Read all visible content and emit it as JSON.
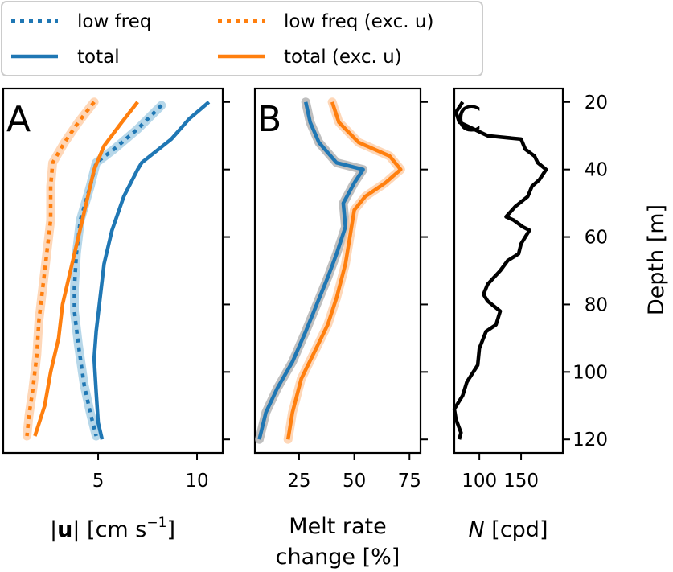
{
  "colors": {
    "blue": "#1f77b4",
    "orange": "#ff7f0e",
    "black": "#000000",
    "band_blue": "#9ecae1",
    "band_orange": "#fdc9a0",
    "band_gray": "#aaaaaa"
  },
  "legend": {
    "placement": "top",
    "entries": [
      {
        "label": "low freq",
        "color": "#1f77b4",
        "style": "dotted"
      },
      {
        "label": "total",
        "color": "#1f77b4",
        "style": "solid"
      },
      {
        "label": "low freq (exc. u)",
        "color": "#ff7f0e",
        "style": "dotted"
      },
      {
        "label": "total (exc. u)",
        "color": "#ff7f0e",
        "style": "solid"
      }
    ]
  },
  "depth_axis": {
    "label": "Depth [m]",
    "ticks": [
      20,
      40,
      60,
      80,
      100,
      120
    ],
    "range": [
      16,
      124
    ],
    "inverted": true
  },
  "chart_data": [
    {
      "panel": "A",
      "type": "line",
      "xlabel": "|u| [cm s⁻¹]",
      "xlim": [
        0.2,
        11.3
      ],
      "xticks": [
        5,
        10
      ],
      "series": [
        {
          "name": "low freq",
          "color": "#1f77b4",
          "style": "dotted",
          "band": true,
          "points": [
            [
              8.2,
              21
            ],
            [
              7.0,
              28
            ],
            [
              5.8,
              34
            ],
            [
              4.9,
              38
            ],
            [
              4.6,
              45
            ],
            [
              4.1,
              55
            ],
            [
              3.9,
              65
            ],
            [
              3.8,
              75
            ],
            [
              3.8,
              82
            ],
            [
              4.0,
              92
            ],
            [
              4.3,
              104
            ],
            [
              4.6,
              112
            ],
            [
              4.9,
              119
            ]
          ]
        },
        {
          "name": "total",
          "color": "#1f77b4",
          "style": "solid",
          "band": false,
          "points": [
            [
              10.6,
              20
            ],
            [
              9.6,
              25
            ],
            [
              8.7,
              31
            ],
            [
              7.2,
              38
            ],
            [
              7.0,
              40
            ],
            [
              6.3,
              48
            ],
            [
              5.7,
              58
            ],
            [
              5.3,
              68
            ],
            [
              5.1,
              78
            ],
            [
              4.9,
              88
            ],
            [
              4.8,
              96
            ],
            [
              4.9,
              106
            ],
            [
              5.0,
              115
            ],
            [
              5.2,
              120
            ]
          ]
        },
        {
          "name": "low freq (exc. u)",
          "color": "#ff7f0e",
          "style": "dotted",
          "band": true,
          "points": [
            [
              4.8,
              20
            ],
            [
              4.0,
              26
            ],
            [
              3.3,
              32
            ],
            [
              2.7,
              38
            ],
            [
              2.6,
              45
            ],
            [
              2.6,
              55
            ],
            [
              2.4,
              65
            ],
            [
              2.2,
              75
            ],
            [
              2.0,
              85
            ],
            [
              1.9,
              95
            ],
            [
              1.7,
              105
            ],
            [
              1.5,
              113
            ],
            [
              1.4,
              119
            ]
          ]
        },
        {
          "name": "total (exc. u)",
          "color": "#ff7f0e",
          "style": "solid",
          "band": false,
          "points": [
            [
              7.0,
              20
            ],
            [
              6.2,
              26
            ],
            [
              5.3,
              33
            ],
            [
              4.8,
              40
            ],
            [
              4.4,
              50
            ],
            [
              4.0,
              60
            ],
            [
              3.6,
              70
            ],
            [
              3.2,
              80
            ],
            [
              3.0,
              90
            ],
            [
              2.6,
              100
            ],
            [
              2.3,
              110
            ],
            [
              1.8,
              119
            ]
          ]
        }
      ]
    },
    {
      "panel": "B",
      "type": "line",
      "xlabel": "Melt rate change [%]",
      "xlim": [
        5,
        80
      ],
      "xticks": [
        25,
        50,
        75
      ],
      "series": [
        {
          "name": "total",
          "color": "#1f77b4",
          "style": "solid",
          "band": true,
          "points": [
            [
              28,
              20
            ],
            [
              30,
              26
            ],
            [
              34,
              32
            ],
            [
              42,
              38
            ],
            [
              54,
              40
            ],
            [
              50,
              44
            ],
            [
              45,
              50
            ],
            [
              46,
              57
            ],
            [
              42,
              65
            ],
            [
              38,
              72
            ],
            [
              33,
              80
            ],
            [
              28,
              88
            ],
            [
              22,
              97
            ],
            [
              15,
              105
            ],
            [
              10,
              112
            ],
            [
              7,
              120
            ]
          ]
        },
        {
          "name": "total (exc. u)",
          "color": "#ff7f0e",
          "style": "solid",
          "band": true,
          "points": [
            [
              40,
              20
            ],
            [
              43,
              26
            ],
            [
              52,
              32
            ],
            [
              66,
              36
            ],
            [
              71,
              40
            ],
            [
              64,
              44
            ],
            [
              55,
              48
            ],
            [
              50,
              52
            ],
            [
              48,
              60
            ],
            [
              46,
              68
            ],
            [
              42,
              78
            ],
            [
              38,
              86
            ],
            [
              32,
              94
            ],
            [
              26,
              102
            ],
            [
              22,
              112
            ],
            [
              20,
              120
            ]
          ]
        }
      ]
    },
    {
      "panel": "C",
      "type": "line",
      "xlabel": "N [cpd]",
      "xlim": [
        70,
        200
      ],
      "xticks": [
        100,
        150
      ],
      "series": [
        {
          "name": "N",
          "color": "#000000",
          "style": "solid",
          "band": false,
          "points": [
            [
              80,
              20
            ],
            [
              72,
              23
            ],
            [
              76,
              26
            ],
            [
              110,
              30
            ],
            [
              150,
              31
            ],
            [
              155,
              34
            ],
            [
              166,
              36
            ],
            [
              170,
              38
            ],
            [
              180,
              40
            ],
            [
              172,
              43
            ],
            [
              163,
              45
            ],
            [
              158,
              48
            ],
            [
              143,
              51
            ],
            [
              132,
              54
            ],
            [
              141,
              55
            ],
            [
              152,
              57
            ],
            [
              160,
              58
            ],
            [
              150,
              62
            ],
            [
              147,
              65
            ],
            [
              134,
              67
            ],
            [
              125,
              70
            ],
            [
              110,
              74
            ],
            [
              105,
              77
            ],
            [
              110,
              79
            ],
            [
              125,
              82
            ],
            [
              120,
              86
            ],
            [
              108,
              88
            ],
            [
              100,
              93
            ],
            [
              98,
              98
            ],
            [
              85,
              103
            ],
            [
              80,
              107
            ],
            [
              70,
              111
            ],
            [
              72,
              114
            ],
            [
              78,
              118
            ],
            [
              76,
              120
            ]
          ]
        }
      ]
    }
  ]
}
